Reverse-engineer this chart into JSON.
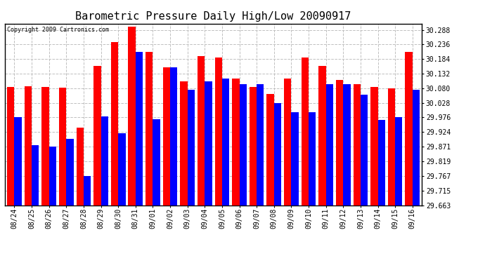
{
  "title": "Barometric Pressure Daily High/Low 20090917",
  "copyright": "Copyright 2009 Cartronics.com",
  "categories": [
    "08/24",
    "08/25",
    "08/26",
    "08/27",
    "08/28",
    "08/29",
    "08/30",
    "08/31",
    "09/01",
    "09/02",
    "09/03",
    "09/04",
    "09/05",
    "09/06",
    "09/07",
    "09/08",
    "09/09",
    "09/10",
    "09/11",
    "09/12",
    "09/13",
    "09/14",
    "09/15",
    "09/16"
  ],
  "highs": [
    30.085,
    30.088,
    30.085,
    30.082,
    29.94,
    30.16,
    30.245,
    30.3,
    30.21,
    30.155,
    30.105,
    30.195,
    30.19,
    30.115,
    30.085,
    30.06,
    30.115,
    30.19,
    30.16,
    30.11,
    30.095,
    30.085,
    30.08,
    30.21
  ],
  "lows": [
    29.976,
    29.878,
    29.871,
    29.9,
    29.767,
    29.98,
    29.92,
    30.21,
    29.97,
    30.155,
    30.075,
    30.105,
    30.115,
    30.095,
    30.095,
    30.028,
    29.995,
    29.995,
    30.095,
    30.095,
    30.058,
    29.968,
    29.976,
    30.075
  ],
  "ylim_min": 29.663,
  "ylim_max": 30.31,
  "yticks": [
    29.663,
    29.715,
    29.767,
    29.819,
    29.871,
    29.924,
    29.976,
    30.028,
    30.08,
    30.132,
    30.184,
    30.236,
    30.288
  ],
  "high_color": "#FF0000",
  "low_color": "#0000FF",
  "bg_color": "#FFFFFF",
  "grid_color": "#C0C0C0",
  "title_fontsize": 11,
  "tick_fontsize": 7,
  "copyright_fontsize": 6
}
